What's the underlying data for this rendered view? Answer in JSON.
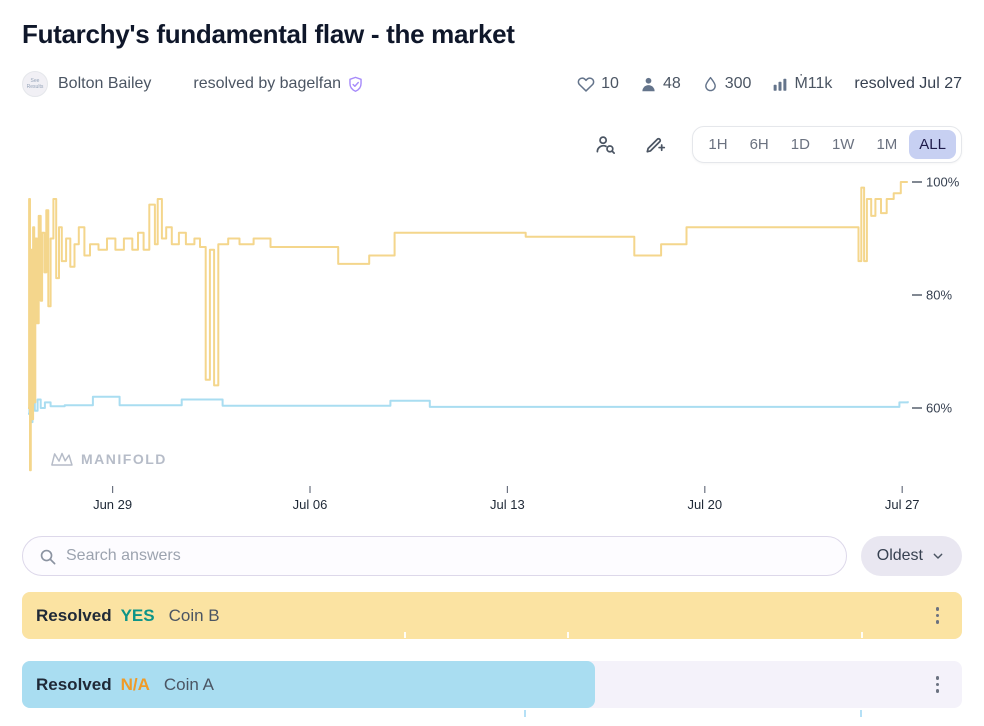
{
  "header": {
    "title": "Futarchy's fundamental flaw - the market",
    "avatar_text": "See Results",
    "creator": "Bolton Bailey",
    "resolved_by": "resolved by bagelfan",
    "stats": {
      "likes": "10",
      "traders": "48",
      "liquidity": "300",
      "volume": "Ṁ11k"
    },
    "resolved_date": "resolved Jul 27"
  },
  "toolbar": {
    "ranges": [
      "1H",
      "6H",
      "1D",
      "1W",
      "1M",
      "ALL"
    ],
    "selected_range": "ALL"
  },
  "chart_data": {
    "type": "line",
    "watermark": "MANIFOLD",
    "legend_position": "none",
    "grid": false,
    "x_axis": {
      "tick_labels": [
        "Jun 29",
        "Jul 06",
        "Jul 13",
        "Jul 20",
        "Jul 27"
      ],
      "tick_days": [
        3,
        10,
        17,
        24,
        31
      ],
      "range_days": [
        0,
        31.2
      ]
    },
    "y_axis": {
      "tick_labels": [
        "100%",
        "80%",
        "60%"
      ],
      "tick_values": [
        100,
        80,
        60
      ],
      "unit": "%",
      "range": [
        48,
        102
      ]
    },
    "series": [
      {
        "name": "Coin A",
        "color": "#a9ddf1",
        "points": [
          [
            0,
            59
          ],
          [
            0.05,
            63
          ],
          [
            0.1,
            57.5
          ],
          [
            0.16,
            61
          ],
          [
            0.24,
            59.5
          ],
          [
            0.34,
            61.5
          ],
          [
            0.45,
            60
          ],
          [
            0.6,
            61
          ],
          [
            0.8,
            60.3
          ],
          [
            1.3,
            60.5
          ],
          [
            2.3,
            62
          ],
          [
            3.15,
            62
          ],
          [
            3.25,
            60.5
          ],
          [
            5.3,
            60.5
          ],
          [
            5.45,
            61.5
          ],
          [
            6.75,
            61.5
          ],
          [
            6.9,
            60.4
          ],
          [
            12.7,
            60.4
          ],
          [
            12.85,
            61.3
          ],
          [
            14.1,
            61.3
          ],
          [
            14.25,
            60.2
          ],
          [
            30.6,
            60.2
          ],
          [
            30.9,
            61
          ],
          [
            31.2,
            61.2
          ]
        ]
      },
      {
        "name": "Coin B",
        "color": "#f4d68c",
        "points": [
          [
            0,
            60
          ],
          [
            0.04,
            97
          ],
          [
            0.07,
            49
          ],
          [
            0.1,
            88
          ],
          [
            0.14,
            58
          ],
          [
            0.18,
            92
          ],
          [
            0.22,
            61
          ],
          [
            0.26,
            90
          ],
          [
            0.32,
            75
          ],
          [
            0.38,
            94
          ],
          [
            0.45,
            79
          ],
          [
            0.5,
            91
          ],
          [
            0.58,
            84
          ],
          [
            0.65,
            95
          ],
          [
            0.72,
            78
          ],
          [
            0.8,
            90
          ],
          [
            0.9,
            97
          ],
          [
            1.0,
            83
          ],
          [
            1.1,
            92
          ],
          [
            1.2,
            86
          ],
          [
            1.35,
            90
          ],
          [
            1.5,
            85
          ],
          [
            1.65,
            89
          ],
          [
            1.8,
            92
          ],
          [
            2.0,
            87
          ],
          [
            2.2,
            89
          ],
          [
            2.5,
            88
          ],
          [
            2.8,
            90
          ],
          [
            3.1,
            88
          ],
          [
            3.4,
            90
          ],
          [
            3.7,
            88
          ],
          [
            3.9,
            91
          ],
          [
            4.1,
            88
          ],
          [
            4.3,
            96
          ],
          [
            4.5,
            89
          ],
          [
            4.6,
            97
          ],
          [
            4.75,
            90
          ],
          [
            4.9,
            92
          ],
          [
            5.1,
            89
          ],
          [
            5.35,
            91
          ],
          [
            5.6,
            89
          ],
          [
            5.9,
            90
          ],
          [
            6.1,
            88.5
          ],
          [
            6.3,
            65
          ],
          [
            6.45,
            88
          ],
          [
            6.6,
            64
          ],
          [
            6.75,
            89
          ],
          [
            7.1,
            90
          ],
          [
            7.5,
            89
          ],
          [
            8.0,
            90
          ],
          [
            8.6,
            88.5
          ],
          [
            10.9,
            88.5
          ],
          [
            11.0,
            85.5
          ],
          [
            11.9,
            85.5
          ],
          [
            12.1,
            87
          ],
          [
            12.7,
            87
          ],
          [
            13.0,
            91
          ],
          [
            17.5,
            91
          ],
          [
            17.65,
            90.3
          ],
          [
            21.4,
            90.3
          ],
          [
            21.5,
            87
          ],
          [
            22.3,
            87
          ],
          [
            22.45,
            89
          ],
          [
            23.2,
            89
          ],
          [
            23.35,
            92
          ],
          [
            29.3,
            92
          ],
          [
            29.45,
            86
          ],
          [
            29.55,
            99
          ],
          [
            29.65,
            86
          ],
          [
            29.75,
            97
          ],
          [
            29.9,
            94
          ],
          [
            30.05,
            97
          ],
          [
            30.25,
            94.5
          ],
          [
            30.45,
            97
          ],
          [
            30.7,
            98
          ],
          [
            30.95,
            100
          ],
          [
            31.2,
            100
          ]
        ]
      }
    ]
  },
  "search": {
    "placeholder": "Search answers",
    "sort_label": "Oldest"
  },
  "answers": [
    {
      "status": "Resolved",
      "resolution": "YES",
      "label": "Coin B",
      "resolution_color": "#0d9488",
      "bar_color": "#fbe3a2",
      "bar_width_pct": 100
    },
    {
      "status": "Resolved",
      "resolution": "N/A",
      "label": "Coin A",
      "resolution_color": "#ef9b27",
      "bar_color": "#a9ddf1",
      "bar_width_pct": 61
    }
  ]
}
